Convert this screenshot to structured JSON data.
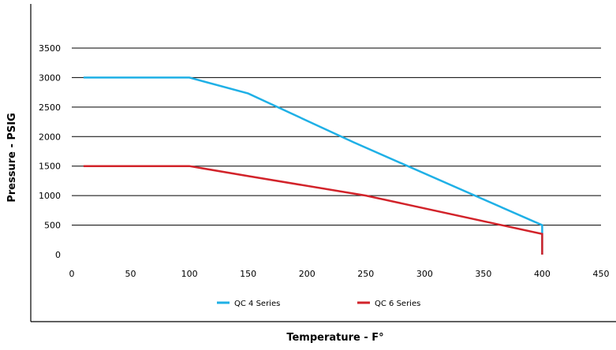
{
  "chart_data": {
    "type": "line",
    "title": "",
    "xlabel": "Temperature - F°",
    "ylabel": "Pressure - PSIG",
    "xlim": [
      0,
      450
    ],
    "ylim": [
      0,
      3500
    ],
    "xticks": [
      0,
      50,
      100,
      150,
      200,
      250,
      300,
      350,
      400,
      450
    ],
    "yticks": [
      0,
      500,
      1000,
      1500,
      2000,
      2500,
      3000,
      3500
    ],
    "grid": "horizontal",
    "legend_position": "bottom",
    "series": [
      {
        "name": "QC 4 Series",
        "color": "#1fb0e6",
        "x": [
          10,
          100,
          150,
          240,
          400,
          400
        ],
        "y": [
          3000,
          3000,
          2730,
          1900,
          500,
          0
        ]
      },
      {
        "name": "QC 6 Series",
        "color": "#d2232a",
        "x": [
          10,
          100,
          150,
          250,
          400,
          400
        ],
        "y": [
          1500,
          1500,
          1330,
          1000,
          350,
          0
        ]
      }
    ]
  }
}
